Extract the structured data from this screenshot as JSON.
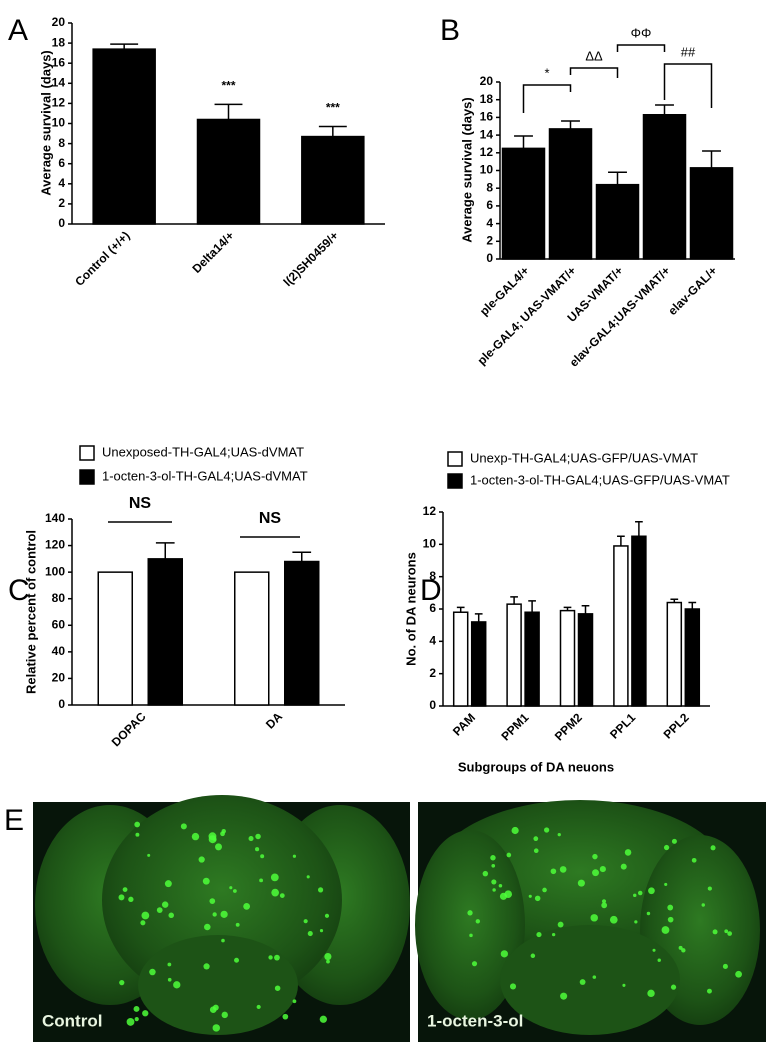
{
  "chart_data": [
    {
      "type": "bar",
      "panel_label": "A",
      "ylabel": "Average survival (days)",
      "categories": [
        "Control (+/+)",
        "Delta14/+",
        "l(2)SH0459/+"
      ],
      "values": [
        17.4,
        10.4,
        8.7
      ],
      "errors": [
        0.5,
        1.5,
        1.0
      ],
      "color": "#000000",
      "annotations": [
        "***",
        "***"
      ],
      "ylim": [
        0,
        20
      ],
      "yticks": [
        0,
        2,
        4,
        6,
        8,
        10,
        12,
        14,
        16,
        18,
        20
      ]
    },
    {
      "type": "bar",
      "panel_label": "B",
      "ylabel": "Average survival (days)",
      "categories": [
        "ple-GAL4/+",
        "ple-GAL4; UAS-VMAT/+",
        "UAS-VMAT/+",
        "elav-GAL4;UAS-VMAT/+",
        "elav-GAL/+"
      ],
      "values": [
        12.5,
        14.7,
        8.4,
        16.3,
        10.3
      ],
      "errors": [
        1.4,
        0.9,
        1.4,
        1.1,
        1.9
      ],
      "color": "#000000",
      "annotations": [
        "*",
        "ΔΔ",
        "ΦΦ",
        "##"
      ],
      "ylim": [
        0,
        20
      ],
      "yticks": [
        0,
        2,
        4,
        6,
        8,
        10,
        12,
        14,
        16,
        18,
        20
      ]
    },
    {
      "type": "grouped_bar",
      "panel_label": "C",
      "ylabel": "Relative percent of control",
      "categories": [
        "DOPAC",
        "DA"
      ],
      "series": [
        {
          "name": "Unexposed-TH-GAL4;UAS-dVMAT",
          "color": "#ffffff",
          "values": [
            100,
            100
          ]
        },
        {
          "name": "1-octen-3-ol-TH-GAL4;UAS-dVMAT",
          "color": "#000000",
          "values": [
            110,
            108
          ],
          "errors": [
            12,
            7
          ]
        }
      ],
      "annotations": [
        "NS",
        "NS"
      ],
      "ylim": [
        0,
        140
      ],
      "yticks": [
        0,
        20,
        40,
        60,
        80,
        100,
        120,
        140
      ]
    },
    {
      "type": "grouped_bar",
      "panel_label": "D",
      "ylabel": "No. of DA neurons",
      "xlabel": "Subgroups of DA neuons",
      "categories": [
        "PAM",
        "PPM1",
        "PPM2",
        "PPL1",
        "PPL2"
      ],
      "series": [
        {
          "name": "Unexp-TH-GAL4;UAS-GFP/UAS-VMAT",
          "color": "#ffffff",
          "values": [
            5.8,
            6.3,
            5.9,
            9.9,
            6.4
          ],
          "errors": [
            0.3,
            0.45,
            0.2,
            0.6,
            0.2
          ]
        },
        {
          "name": "1-octen-3-ol-TH-GAL4;UAS-GFP/UAS-VMAT",
          "color": "#000000",
          "values": [
            5.2,
            5.8,
            5.7,
            10.5,
            6.0
          ],
          "errors": [
            0.5,
            0.7,
            0.5,
            0.9,
            0.4
          ]
        }
      ],
      "ylim": [
        0,
        12
      ],
      "yticks": [
        0,
        2,
        4,
        6,
        8,
        10,
        12
      ]
    }
  ],
  "panel_e": {
    "panel_label": "E",
    "images": [
      "Control",
      "1-octen-3-ol"
    ]
  }
}
